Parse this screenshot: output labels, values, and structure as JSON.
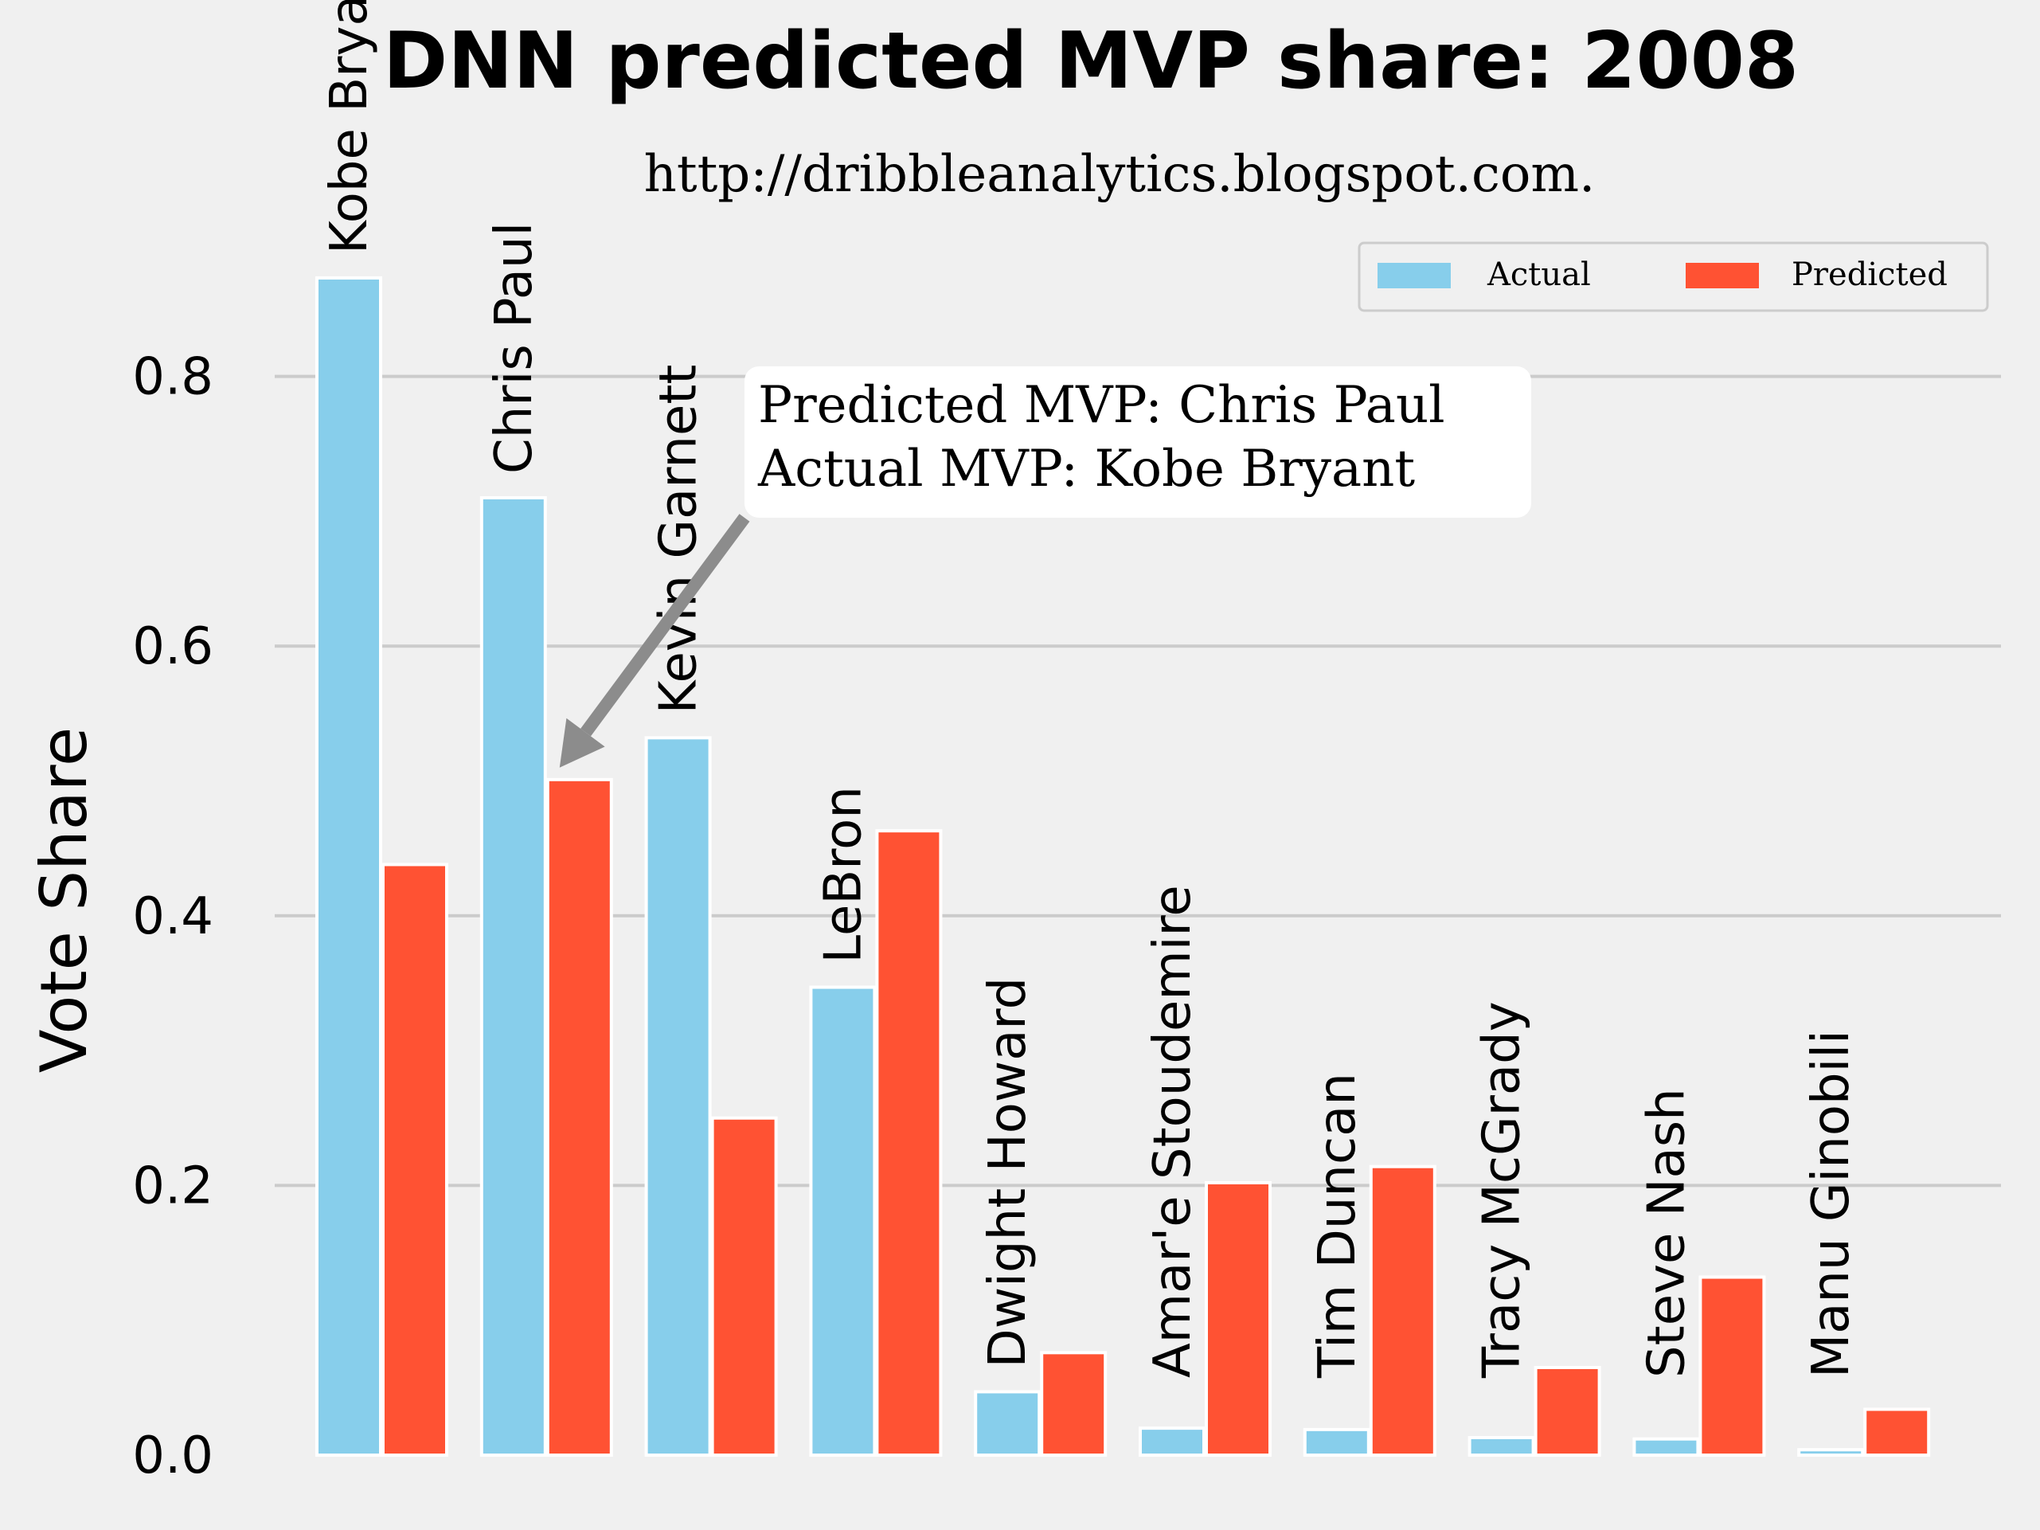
{
  "chart_data": {
    "type": "bar",
    "title": "DNN predicted MVP share: 2008",
    "subtitle": "http://dribbleanalytics.blogspot.com.",
    "xlabel": "",
    "ylabel": "Vote Share",
    "ylim": [
      0,
      0.875
    ],
    "yticks": [
      0.0,
      0.2,
      0.4,
      0.6,
      0.8
    ],
    "ytick_labels": [
      "0.0",
      "0.2",
      "0.4",
      "0.6",
      "0.8"
    ],
    "grid": "horizontal",
    "legend_position": "top-right",
    "categories": [
      "Kobe Bryant",
      "Chris Paul",
      "Kevin Garnett",
      "LeBron",
      "Dwight Howard",
      "Amar'e Stoudemire",
      "Tim Duncan",
      "Tracy McGrady",
      "Steve Nash",
      "Manu Ginobili"
    ],
    "series": [
      {
        "name": "Actual",
        "color": "#87ceeb",
        "values": [
          0.873,
          0.71,
          0.532,
          0.347,
          0.047,
          0.02,
          0.019,
          0.013,
          0.012,
          0.004
        ]
      },
      {
        "name": "Predicted",
        "color": "#ff5233",
        "values": [
          0.438,
          0.501,
          0.25,
          0.463,
          0.076,
          0.202,
          0.214,
          0.065,
          0.132,
          0.034
        ]
      }
    ],
    "annotations": [
      {
        "lines": [
          "Predicted MVP: Chris Paul",
          "Actual MVP: Kobe Bryant"
        ],
        "target_category": "Chris Paul",
        "target_series": "Predicted"
      }
    ]
  }
}
